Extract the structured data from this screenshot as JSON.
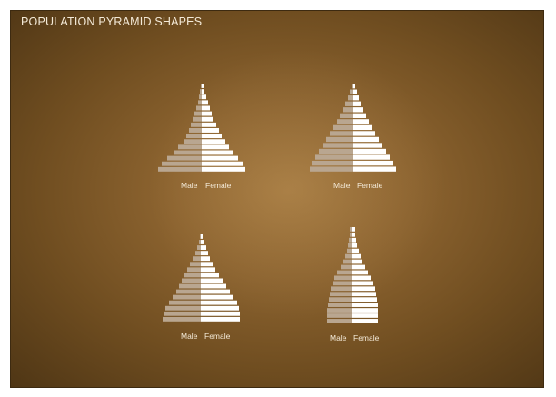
{
  "title": "POPULATION PYRAMID SHAPES",
  "colors": {
    "board": "#8d6430",
    "male_bar": "#b9a690",
    "female_bar": "#ffffff",
    "text": "#f4ead8"
  },
  "chart_data": [
    {
      "type": "bar",
      "pyramid": "top-left",
      "male_label": "Male",
      "female_label": "Female",
      "male": [
        1,
        2,
        3,
        4,
        6,
        8,
        10,
        12,
        14,
        17,
        20,
        26,
        30,
        38,
        44,
        48
      ],
      "female": [
        2,
        3,
        5,
        7,
        9,
        11,
        13,
        16,
        19,
        22,
        26,
        30,
        35,
        40,
        45,
        48
      ]
    },
    {
      "type": "bar",
      "pyramid": "top-right",
      "male_label": "Male",
      "female_label": "Female",
      "male": [
        2,
        4,
        6,
        9,
        12,
        15,
        18,
        22,
        26,
        30,
        34,
        38,
        42,
        46,
        48
      ],
      "female": [
        2,
        4,
        6,
        8,
        11,
        14,
        17,
        20,
        24,
        28,
        32,
        36,
        40,
        44,
        47
      ]
    },
    {
      "type": "bar",
      "pyramid": "bottom-left",
      "male_label": "Male",
      "female_label": "Female",
      "male": [
        1,
        2,
        4,
        6,
        9,
        12,
        15,
        18,
        21,
        24,
        27,
        31,
        35,
        39,
        41,
        42
      ],
      "female": [
        2,
        4,
        6,
        8,
        10,
        13,
        16,
        20,
        24,
        28,
        32,
        36,
        40,
        42,
        43,
        43
      ]
    },
    {
      "type": "bar",
      "pyramid": "bottom-right",
      "male_label": "Male",
      "female_label": "Female",
      "male": [
        3,
        3,
        4,
        5,
        6,
        8,
        10,
        13,
        17,
        20,
        22,
        24,
        25,
        26,
        27,
        28,
        28,
        28
      ],
      "female": [
        3,
        3,
        4,
        5,
        7,
        9,
        11,
        14,
        17,
        20,
        23,
        25,
        26,
        27,
        28,
        28,
        28,
        28
      ]
    }
  ]
}
